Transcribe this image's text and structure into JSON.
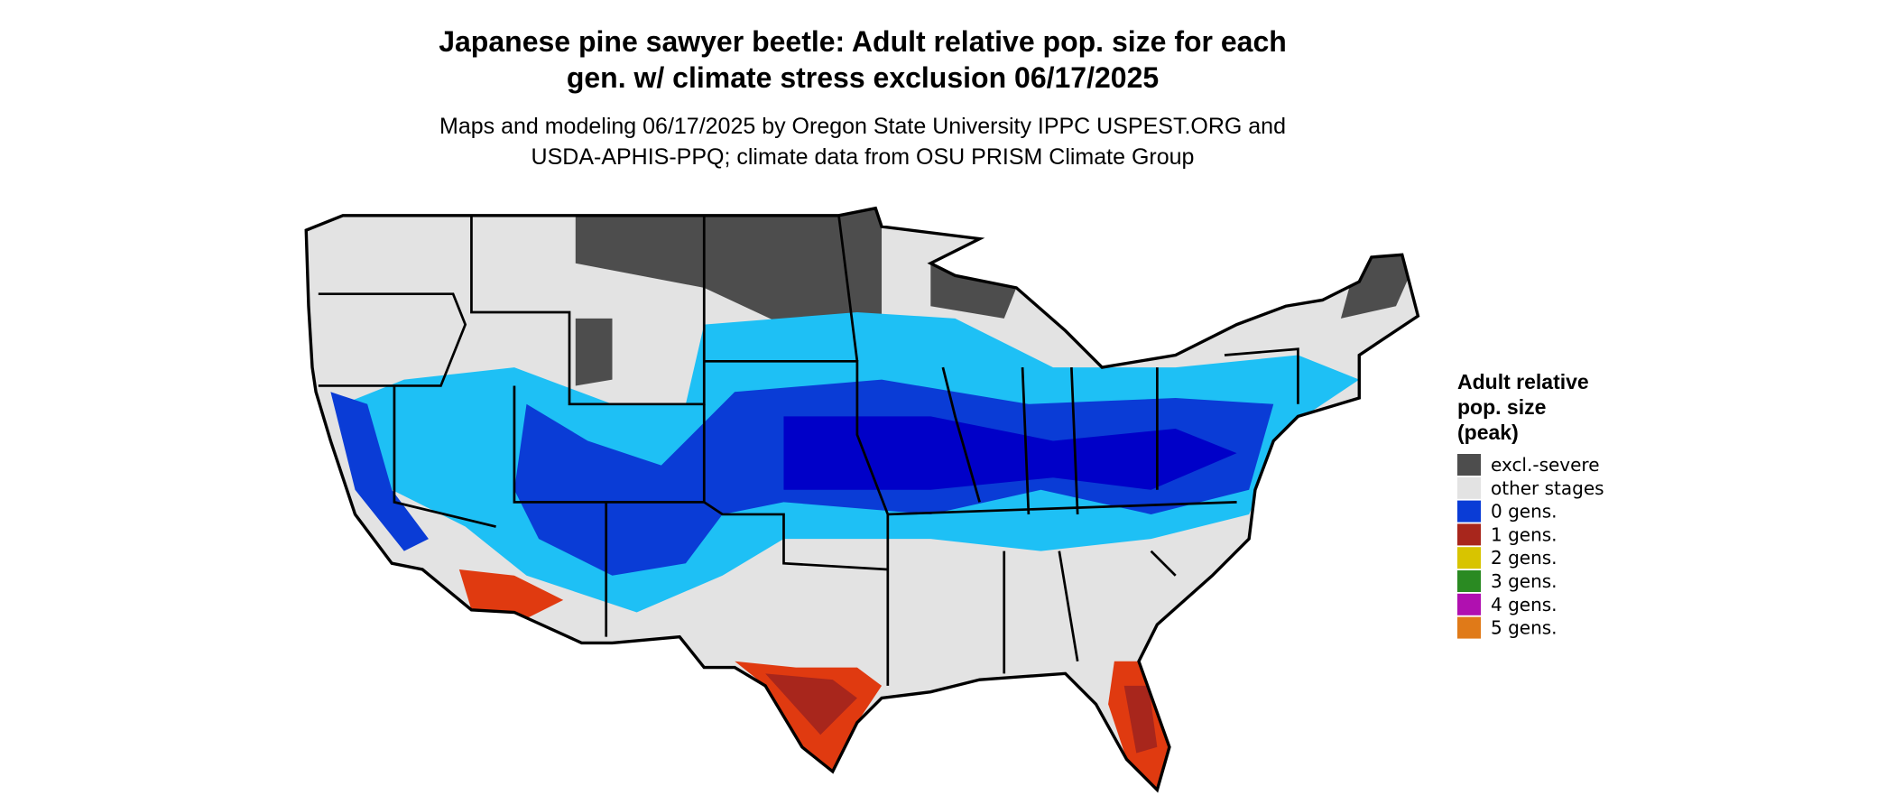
{
  "header": {
    "title": [
      "Japanese pine sawyer beetle: Adult relative pop. size for each",
      "gen. w/ climate stress exclusion 06/17/2025"
    ],
    "subtitle": [
      "Maps and modeling 06/17/2025 by Oregon State University IPPC USPEST.ORG and",
      "USDA-APHIS-PPQ; climate data from OSU PRISM Climate Group"
    ]
  },
  "legend": {
    "title": [
      "Adult relative",
      "pop. size",
      "(peak)"
    ],
    "items": [
      {
        "label": "excl.-severe",
        "color": "#4d4d4d"
      },
      {
        "label": "other stages",
        "color": "#e3e3e3"
      },
      {
        "label": "0 gens.",
        "color": "#0a3cd6"
      },
      {
        "label": "1 gens.",
        "color": "#a8261c"
      },
      {
        "label": "2 gens.",
        "color": "#d8c400"
      },
      {
        "label": "3 gens.",
        "color": "#2a8a22"
      },
      {
        "label": "4 gens.",
        "color": "#b010b0"
      },
      {
        "label": "5 gens.",
        "color": "#e07a18"
      }
    ]
  }
}
